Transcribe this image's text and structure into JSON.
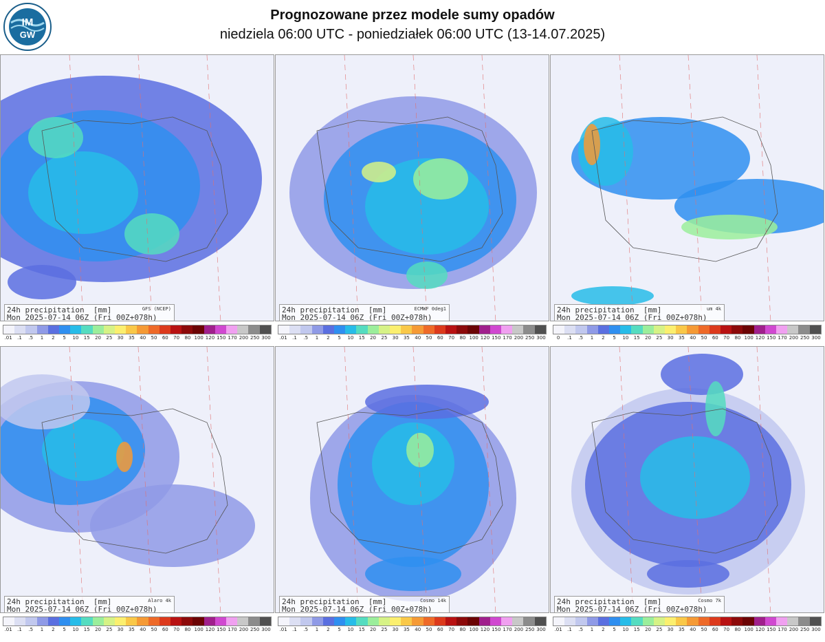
{
  "header": {
    "logo_text": "IMGW",
    "title": "Prognozowane przez modele sumy opadów",
    "subtitle": "niedziela 06:00 UTC - poniedziałek 06:00 UTC (13-14.07.2025)"
  },
  "colorbar": {
    "levels": [
      ".01",
      ".1",
      ".5",
      "1",
      "2",
      "5",
      "10",
      "15",
      "20",
      "25",
      "30",
      "35",
      "40",
      "50",
      "60",
      "70",
      "80",
      "100",
      "120",
      "150",
      "170",
      "200",
      "250",
      "300"
    ],
    "colors": [
      "#f4f4fb",
      "#dcdff3",
      "#c1c8ee",
      "#8f9ae6",
      "#5a6fe0",
      "#2f8ff0",
      "#27bce8",
      "#55dcc0",
      "#9bee9b",
      "#d6f286",
      "#fbef6f",
      "#f9c848",
      "#f59a35",
      "#ee6a28",
      "#dc3a1c",
      "#b81212",
      "#8c0a0a",
      "#6b0404",
      "#a0208c",
      "#d048d0",
      "#f0a0f0",
      "#c8c8c8",
      "#8c8c8c",
      "#505050"
    ]
  },
  "panels": [
    {
      "title_line1": "24h precipitation  [mm]",
      "title_line2": "Mon 2025-07-14 06Z (Fri 00Z+078h)",
      "model": "GFS (NCEP)",
      "first_tick": ".01"
    },
    {
      "title_line1": "24h precipitation  [mm]",
      "title_line2": "Mon 2025-07-14 06Z (Fri 00Z+078h)",
      "model": "ECMWF 0deg1",
      "first_tick": ".01"
    },
    {
      "title_line1": "24h precipitation  [mm]",
      "title_line2": "Mon 2025-07-14 06Z (Fri 00Z+078h)",
      "model": "um 4k",
      "first_tick": "0"
    },
    {
      "title_line1": "24h precipitation  [mm]",
      "title_line2": "Mon 2025-07-14 06Z (Fri 00Z+078h)",
      "model": "Alaro 4k",
      "first_tick": ".01"
    },
    {
      "title_line1": "24h precipitation  [mm]",
      "title_line2": "Mon 2025-07-14 06Z (Fri 00Z+078h)",
      "model": "Cosmo 14k",
      "first_tick": ".01"
    },
    {
      "title_line1": "24h precipitation  [mm]",
      "title_line2": "Mon 2025-07-14 06Z (Fri 00Z+078h)",
      "model": "Cosmo 7k",
      "first_tick": ".01"
    }
  ]
}
